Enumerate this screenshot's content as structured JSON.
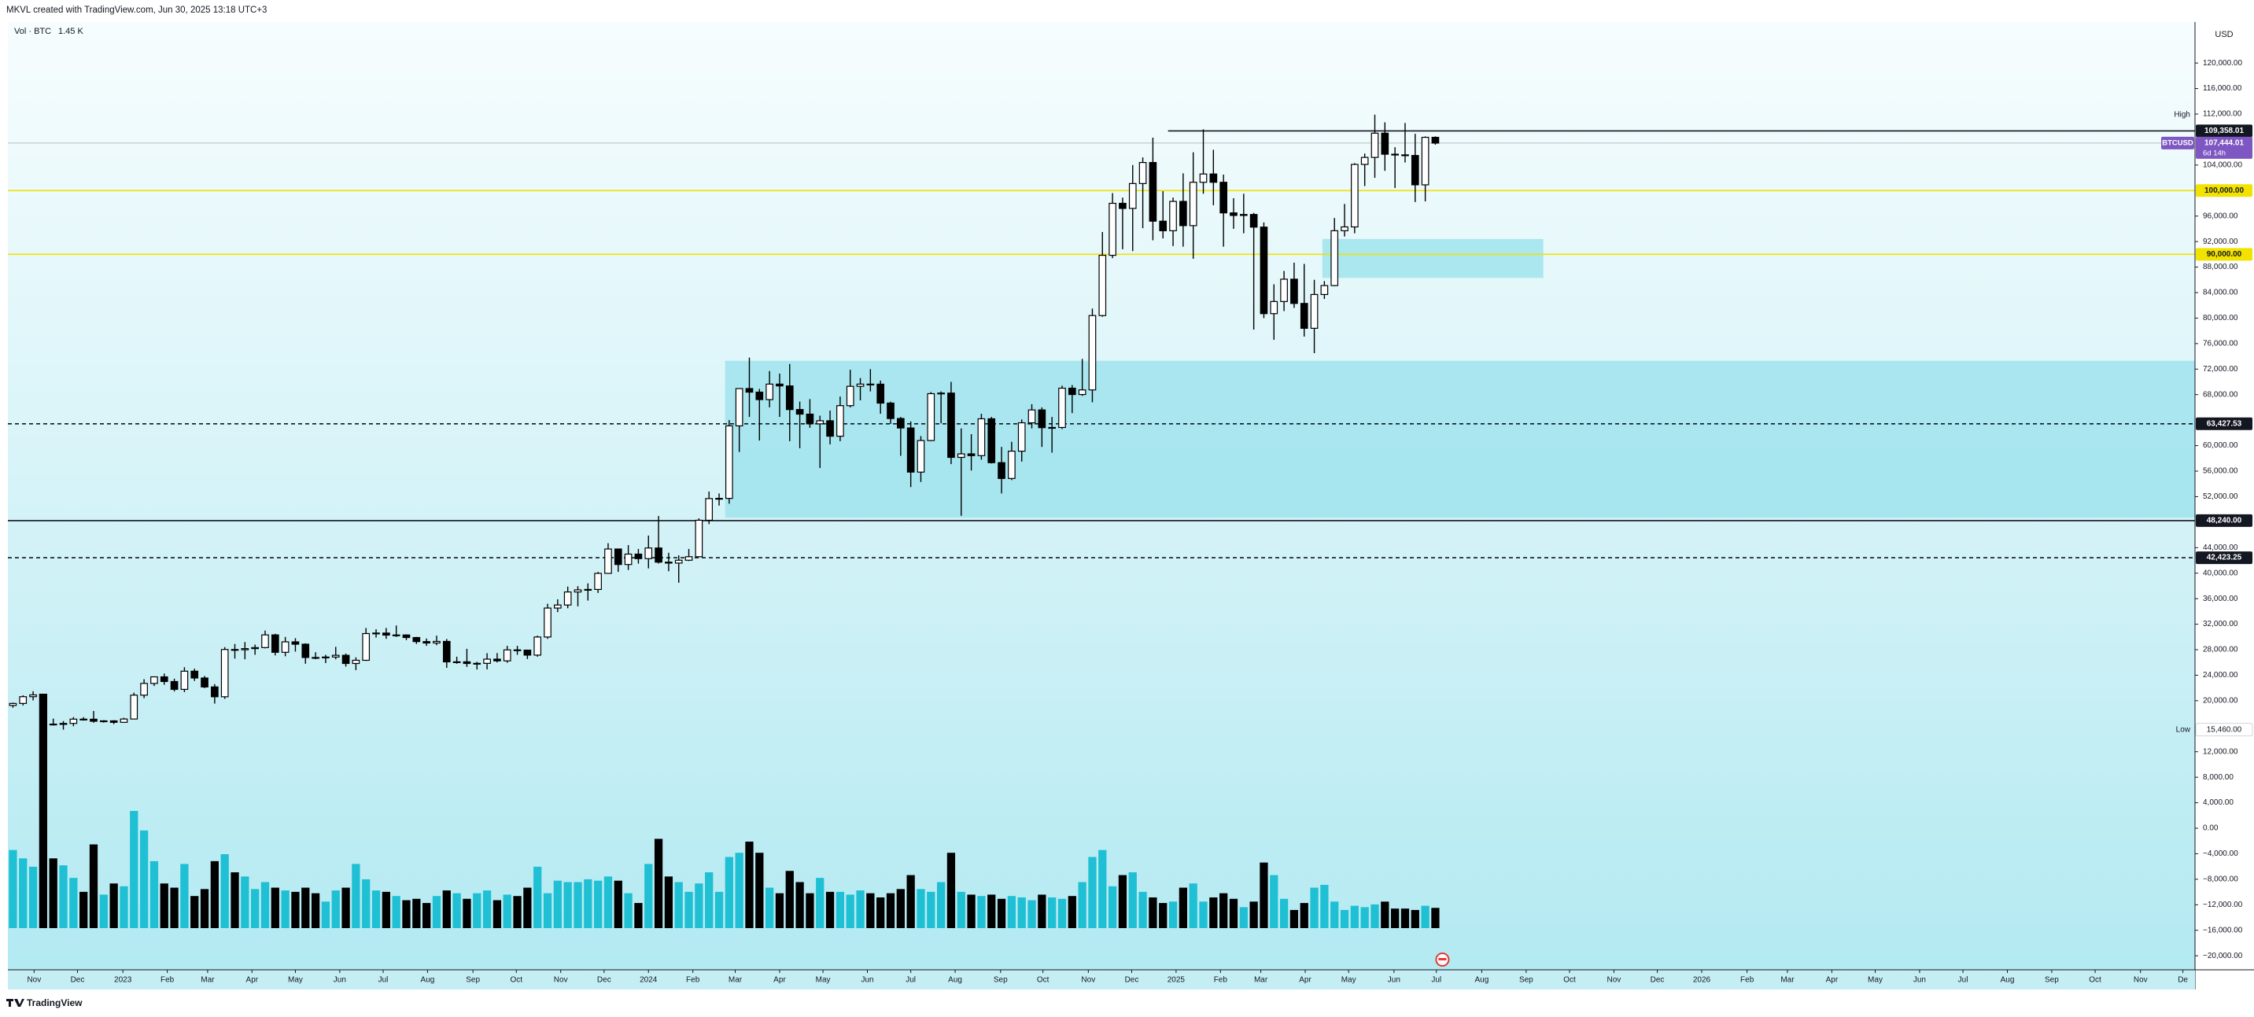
{
  "chart_data": {
    "type": "candlestick",
    "title": "MKVL created with TradingView.com, Jun 30, 2025 13:18 UTC+3",
    "volume_title": "Vol · BTC",
    "volume_value": "1.45 K",
    "currency": "USD",
    "brand": "TradingView",
    "grid": false,
    "up_color": "#ffffff",
    "down_color": "#000000",
    "volume_up_color": "#1fbfd4",
    "volume_down_color": "#000000",
    "open": [
      19260,
      19570,
      20630,
      20910,
      16330,
      16290,
      16440,
      17110,
      17100,
      16780,
      16840,
      16610,
      17130,
      20870,
      22710,
      23740,
      23010,
      21780,
      24630,
      23560,
      22160,
      20620,
      28030,
      27990,
      28170,
      28330,
      30320,
      27590,
      29230,
      28860,
      26780,
      26750,
      26850,
      27120,
      25840,
      26340,
      30530,
      30610,
      30290,
      30310,
      29910,
      29270,
      29050,
      29300,
      26090,
      26100,
      25840,
      25860,
      26520,
      26250,
      27970,
      27930,
      27150,
      29990,
      34530,
      35010,
      37050,
      37380,
      37450,
      39970,
      43790,
      41360,
      42990,
      42280,
      43950,
      41730,
      41580,
      42030,
      42580,
      48300,
      51700,
      51730,
      63100,
      68950,
      68390,
      67220,
      69650,
      69360,
      65660,
      64940,
      63420,
      63900,
      61480,
      66270,
      69300,
      69650,
      69640,
      66670,
      64250,
      62770,
      55850,
      60800,
      68150,
      68240,
      58160,
      58710,
      58430,
      64210,
      57330,
      54850,
      59130,
      63580,
      65600,
      62820,
      62850,
      69010,
      68020,
      68740,
      80400,
      89850,
      98000,
      97200,
      101100,
      104400,
      95200,
      93700,
      98300,
      94500,
      101300,
      102600,
      101300,
      96500,
      96100,
      96250,
      94270,
      80700,
      82600,
      86100,
      82300,
      78400,
      83700,
      85100,
      93700,
      94300,
      104100,
      105200,
      109000,
      105700,
      105600,
      105500,
      100900,
      108350
    ],
    "high": [
      19700,
      20850,
      21480,
      21050,
      17190,
      16810,
      17430,
      17430,
      18390,
      16950,
      16940,
      17330,
      21260,
      23370,
      23820,
      24250,
      23450,
      25250,
      25020,
      23880,
      22600,
      28400,
      28900,
      29200,
      28800,
      31000,
      30500,
      30000,
      29800,
      29000,
      27600,
      27200,
      28450,
      27400,
      26800,
      31400,
      31200,
      31400,
      31800,
      30400,
      30000,
      29750,
      30200,
      29680,
      26900,
      28140,
      26100,
      27450,
      27470,
      28600,
      28600,
      28000,
      30200,
      35200,
      35900,
      37900,
      37960,
      38400,
      40200,
      44700,
      43800,
      44400,
      43800,
      45900,
      48970,
      43200,
      42800,
      43800,
      48600,
      52800,
      52500,
      64000,
      69000,
      73800,
      68900,
      71700,
      71300,
      72800,
      66900,
      67300,
      64700,
      65500,
      67700,
      71900,
      70600,
      72000,
      70200,
      66900,
      64500,
      63800,
      61500,
      68400,
      68500,
      70000,
      62700,
      61800,
      65000,
      64500,
      59800,
      60600,
      64100,
      66500,
      66000,
      64500,
      69400,
      69500,
      73600,
      81500,
      93500,
      99600,
      98900,
      104000,
      105200,
      108300,
      99900,
      98900,
      102700,
      106000,
      109600,
      106400,
      102500,
      98800,
      99500,
      96500,
      95000,
      85300,
      87400,
      88700,
      88500,
      86000,
      85800,
      95700,
      97900,
      104300,
      105800,
      111900,
      110700,
      106800,
      110600,
      108900,
      108500,
      108500
    ],
    "low": [
      18900,
      19250,
      20050,
      15590,
      16120,
      15460,
      16000,
      16880,
      16550,
      16560,
      16330,
      16540,
      17100,
      20400,
      22300,
      22500,
      21450,
      21350,
      23100,
      21970,
      19550,
      20300,
      26600,
      26500,
      27200,
      28200,
      27100,
      26970,
      27700,
      25800,
      26500,
      25900,
      26500,
      25350,
      24800,
      26250,
      29900,
      29700,
      30000,
      29500,
      28900,
      28600,
      28700,
      25160,
      25800,
      25300,
      24900,
      24920,
      26000,
      25950,
      27200,
      26530,
      26900,
      29700,
      33900,
      34500,
      34800,
      35700,
      36900,
      39900,
      40200,
      40500,
      41500,
      40750,
      41500,
      40300,
      38500,
      41900,
      42500,
      47700,
      50600,
      50900,
      59000,
      64500,
      60800,
      66000,
      64500,
      60700,
      59600,
      62800,
      56500,
      60200,
      60700,
      66000,
      67100,
      68500,
      65000,
      63400,
      58400,
      53500,
      54300,
      60700,
      63500,
      57100,
      49000,
      56100,
      57800,
      57200,
      52500,
      54600,
      57500,
      62700,
      59800,
      58900,
      62600,
      65100,
      67800,
      66800,
      80200,
      89400,
      90800,
      90500,
      94100,
      92200,
      92500,
      91300,
      91200,
      89300,
      99500,
      97700,
      91200,
      94000,
      93300,
      78200,
      80000,
      76600,
      81100,
      81600,
      77100,
      74500,
      83000,
      85000,
      92800,
      93300,
      100700,
      102000,
      103100,
      100400,
      104400,
      98200,
      98300,
      107200
    ],
    "close": [
      19570,
      20630,
      20910,
      16330,
      16290,
      16440,
      17110,
      17100,
      16780,
      16840,
      16610,
      17130,
      20870,
      22710,
      23740,
      23010,
      21780,
      24630,
      23560,
      22160,
      20620,
      28030,
      27990,
      28170,
      28330,
      30320,
      27590,
      29230,
      28860,
      26780,
      26750,
      26850,
      27120,
      25840,
      26340,
      30530,
      30610,
      30290,
      30310,
      29910,
      29270,
      29050,
      29300,
      26090,
      26100,
      25840,
      25860,
      26520,
      26250,
      27970,
      27930,
      27150,
      29990,
      34530,
      35010,
      37050,
      37380,
      37450,
      39970,
      43790,
      41360,
      42990,
      42280,
      43950,
      41730,
      41580,
      42030,
      42580,
      48300,
      51700,
      51730,
      63100,
      68950,
      68390,
      67220,
      69650,
      69360,
      65660,
      64940,
      63420,
      63900,
      61480,
      66270,
      69300,
      69650,
      69640,
      66670,
      64250,
      62770,
      55850,
      60800,
      68150,
      68240,
      58160,
      58710,
      58430,
      64210,
      57330,
      54850,
      59130,
      63580,
      65600,
      62820,
      62850,
      69010,
      68020,
      68740,
      80400,
      89850,
      98000,
      97200,
      101100,
      104400,
      95200,
      93700,
      98300,
      94500,
      101300,
      102600,
      101300,
      96500,
      96100,
      96250,
      94270,
      80700,
      82600,
      86100,
      82300,
      78400,
      83700,
      85100,
      93700,
      94300,
      104100,
      105200,
      109000,
      105700,
      105600,
      105500,
      100900,
      108350,
      107444.01
    ],
    "volume": [
      5.6,
      5.0,
      4.4,
      16.8,
      5.0,
      4.5,
      3.6,
      2.6,
      6.0,
      2.4,
      3.2,
      3.0,
      8.4,
      7.0,
      4.8,
      3.2,
      2.9,
      4.6,
      2.3,
      2.8,
      4.8,
      5.3,
      4.0,
      3.7,
      2.8,
      3.3,
      2.9,
      2.7,
      2.6,
      2.9,
      2.5,
      1.9,
      2.7,
      2.9,
      4.6,
      3.5,
      2.7,
      2.6,
      2.3,
      2.0,
      2.1,
      1.8,
      2.3,
      2.7,
      2.5,
      2.1,
      2.5,
      2.7,
      2.0,
      2.4,
      2.3,
      2.9,
      4.4,
      2.5,
      3.4,
      3.3,
      3.3,
      3.5,
      3.4,
      3.7,
      3.4,
      2.5,
      1.8,
      4.6,
      6.4,
      3.7,
      3.3,
      2.6,
      3.2,
      4.0,
      2.6,
      5.1,
      5.4,
      6.2,
      5.4,
      2.9,
      2.5,
      4.1,
      3.3,
      2.5,
      3.6,
      2.6,
      2.6,
      2.4,
      2.7,
      2.5,
      2.2,
      2.5,
      2.8,
      3.8,
      2.8,
      2.6,
      3.3,
      5.4,
      2.6,
      2.4,
      2.3,
      2.4,
      2.1,
      2.3,
      2.2,
      2.0,
      2.4,
      2.2,
      2.1,
      2.3,
      3.3,
      5.1,
      5.6,
      3.0,
      3.8,
      4.0,
      2.6,
      2.2,
      1.8,
      1.9,
      2.9,
      3.2,
      1.9,
      2.2,
      2.5,
      2.1,
      1.5,
      1.9,
      4.7,
      3.8,
      2.1,
      1.3,
      1.8,
      2.9,
      3.1,
      1.9,
      1.3,
      1.6,
      1.5,
      1.7,
      1.9,
      1.4,
      1.4,
      1.3,
      1.6,
      1.45
    ],
    "xlim": [
      -0.5,
      216.3
    ],
    "xticks": [
      {
        "value": 2.1,
        "label": "Nov"
      },
      {
        "value": 6.4,
        "label": "Dec"
      },
      {
        "value": 10.9,
        "label": "2023"
      },
      {
        "value": 15.3,
        "label": "Feb"
      },
      {
        "value": 19.3,
        "label": "Mar"
      },
      {
        "value": 23.7,
        "label": "Apr"
      },
      {
        "value": 28.0,
        "label": "May"
      },
      {
        "value": 32.4,
        "label": "Jun"
      },
      {
        "value": 36.7,
        "label": "Jul"
      },
      {
        "value": 41.1,
        "label": "Aug"
      },
      {
        "value": 45.6,
        "label": "Sep"
      },
      {
        "value": 49.9,
        "label": "Oct"
      },
      {
        "value": 54.3,
        "label": "Nov"
      },
      {
        "value": 58.6,
        "label": "Dec"
      },
      {
        "value": 63.0,
        "label": "2024"
      },
      {
        "value": 67.4,
        "label": "Feb"
      },
      {
        "value": 71.6,
        "label": "Mar"
      },
      {
        "value": 76.0,
        "label": "Apr"
      },
      {
        "value": 80.3,
        "label": "May"
      },
      {
        "value": 84.7,
        "label": "Jun"
      },
      {
        "value": 89.0,
        "label": "Jul"
      },
      {
        "value": 93.4,
        "label": "Aug"
      },
      {
        "value": 97.9,
        "label": "Sep"
      },
      {
        "value": 102.1,
        "label": "Oct"
      },
      {
        "value": 106.6,
        "label": "Nov"
      },
      {
        "value": 110.9,
        "label": "Dec"
      },
      {
        "value": 115.3,
        "label": "2025"
      },
      {
        "value": 119.7,
        "label": "Feb"
      },
      {
        "value": 123.7,
        "label": "Mar"
      },
      {
        "value": 128.1,
        "label": "Apr"
      },
      {
        "value": 132.4,
        "label": "May"
      },
      {
        "value": 136.9,
        "label": "Jun"
      },
      {
        "value": 141.1,
        "label": "Jul"
      },
      {
        "value": 145.6,
        "label": "Aug"
      },
      {
        "value": 150.0,
        "label": "Sep"
      },
      {
        "value": 154.3,
        "label": "Oct"
      },
      {
        "value": 158.7,
        "label": "Nov"
      },
      {
        "value": 163.0,
        "label": "Dec"
      },
      {
        "value": 167.4,
        "label": "2026"
      },
      {
        "value": 171.9,
        "label": "Feb"
      },
      {
        "value": 175.9,
        "label": "Mar"
      },
      {
        "value": 180.3,
        "label": "Apr"
      },
      {
        "value": 184.6,
        "label": "May"
      },
      {
        "value": 189.0,
        "label": "Jun"
      },
      {
        "value": 193.3,
        "label": "Jul"
      },
      {
        "value": 197.7,
        "label": "Aug"
      },
      {
        "value": 202.1,
        "label": "Sep"
      },
      {
        "value": 206.4,
        "label": "Oct"
      },
      {
        "value": 210.9,
        "label": "Nov"
      },
      {
        "value": 215.1,
        "label": "De"
      }
    ],
    "ylim": [
      -22200,
      123100
    ],
    "yticks": [
      {
        "value": 120000,
        "label": "120,000.00"
      },
      {
        "value": 116000,
        "label": "116,000.00"
      },
      {
        "value": 112000,
        "label": "112,000.00"
      },
      {
        "value": 104000,
        "label": "104,000.00"
      },
      {
        "value": 96000,
        "label": "96,000.00"
      },
      {
        "value": 92000,
        "label": "92,000.00"
      },
      {
        "value": 88000,
        "label": "88,000.00"
      },
      {
        "value": 84000,
        "label": "84,000.00"
      },
      {
        "value": 80000,
        "label": "80,000.00"
      },
      {
        "value": 76000,
        "label": "76,000.00"
      },
      {
        "value": 72000,
        "label": "72,000.00"
      },
      {
        "value": 68000,
        "label": "68,000.00"
      },
      {
        "value": 60000,
        "label": "60,000.00"
      },
      {
        "value": 56000,
        "label": "56,000.00"
      },
      {
        "value": 52000,
        "label": "52,000.00"
      },
      {
        "value": 44000,
        "label": "44,000.00"
      },
      {
        "value": 40000,
        "label": "40,000.00"
      },
      {
        "value": 36000,
        "label": "36,000.00"
      },
      {
        "value": 32000,
        "label": "32,000.00"
      },
      {
        "value": 28000,
        "label": "28,000.00"
      },
      {
        "value": 24000,
        "label": "24,000.00"
      },
      {
        "value": 20000,
        "label": "20,000.00"
      },
      {
        "value": 12000,
        "label": "12,000.00"
      },
      {
        "value": 8000,
        "label": "8,000.00"
      },
      {
        "value": 4000,
        "label": "4,000.00"
      },
      {
        "value": 0,
        "label": "0.00"
      },
      {
        "value": -4000,
        "label": "−4,000.00"
      },
      {
        "value": -8000,
        "label": "−8,000.00"
      },
      {
        "value": -12000,
        "label": "−12,000.00"
      },
      {
        "value": -16000,
        "label": "−16,000.00"
      },
      {
        "value": -20000,
        "label": "−20,000.00"
      }
    ],
    "levels": [
      {
        "value": 109358.01,
        "label": "109,358.01",
        "color": "#131722",
        "text_color": "#ffffff",
        "style": "solid",
        "x_start": 114.5
      },
      {
        "value": 100000,
        "label": "100,000.00",
        "color": "#f2e200",
        "text_color": "#131722",
        "style": "solid"
      },
      {
        "value": 90000,
        "label": "90,000.00",
        "color": "#f2e200",
        "text_color": "#131722",
        "style": "solid"
      },
      {
        "value": 63427.53,
        "label": "63,427.53",
        "color": "#131722",
        "text_color": "#ffffff",
        "style": "dashed"
      },
      {
        "value": 48240,
        "label": "48,240.00",
        "color": "#131722",
        "text_color": "#ffffff",
        "style": "solid"
      },
      {
        "value": 42423.25,
        "label": "42,423.25",
        "color": "#131722",
        "text_color": "#ffffff",
        "style": "dashed"
      }
    ],
    "last_price": {
      "value": 107444.01,
      "label": "107,444.01",
      "symbol": "BTCUSD",
      "countdown": "6d 14h",
      "color": "#7e57c2"
    },
    "zones": [
      {
        "x": [
          70.6,
          216.3
        ],
        "y": [
          48700,
          73300
        ],
        "color": "#a3e4ed"
      },
      {
        "x": [
          129.8,
          151.7
        ],
        "y": [
          86300,
          92400
        ],
        "color": "#a3e4ed"
      }
    ],
    "high_marker": "High",
    "low_marker": {
      "value": 15460,
      "label": "15,460.00",
      "text": "Low"
    }
  }
}
